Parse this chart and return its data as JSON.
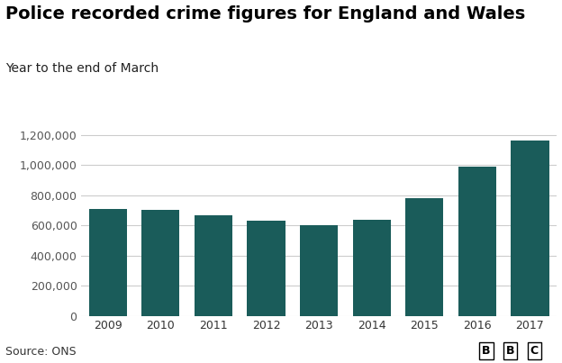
{
  "title": "Police recorded crime figures for England and Wales",
  "subtitle": "Year to the end of March",
  "years": [
    2009,
    2010,
    2011,
    2012,
    2013,
    2014,
    2015,
    2016,
    2017
  ],
  "values": [
    710000,
    700000,
    665000,
    630000,
    600000,
    635000,
    780000,
    990000,
    1160000
  ],
  "bar_color": "#1a5c5a",
  "background_color": "#ffffff",
  "ylim": [
    0,
    1300000
  ],
  "yticks": [
    0,
    200000,
    400000,
    600000,
    800000,
    1000000,
    1200000
  ],
  "source_text": "Source: ONS",
  "bbc_letters": [
    "B",
    "B",
    "C"
  ],
  "title_fontsize": 14,
  "subtitle_fontsize": 10,
  "tick_fontsize": 9,
  "source_fontsize": 9,
  "grid_color": "#cccccc",
  "ytick_color": "#555555",
  "xtick_color": "#333333"
}
